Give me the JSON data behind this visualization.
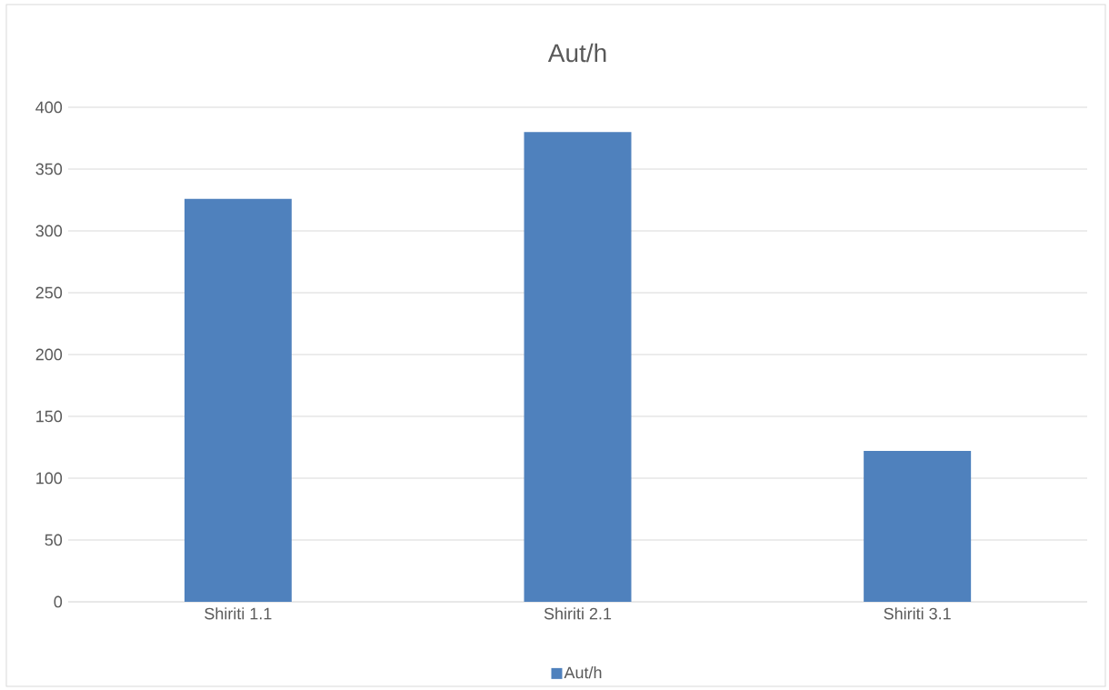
{
  "chart_data": {
    "type": "bar",
    "title": "Aut/h",
    "categories": [
      "Shiriti 1.1",
      "Shiriti 2.1",
      "Shiriti 3.1"
    ],
    "series": [
      {
        "name": "Aut/h",
        "color": "#4f81bd",
        "values": [
          326,
          380,
          122
        ]
      }
    ],
    "ylim": [
      0,
      400
    ],
    "yticks": [
      0,
      50,
      100,
      150,
      200,
      250,
      300,
      350,
      400
    ],
    "grid": "y",
    "legend": "bottom"
  }
}
